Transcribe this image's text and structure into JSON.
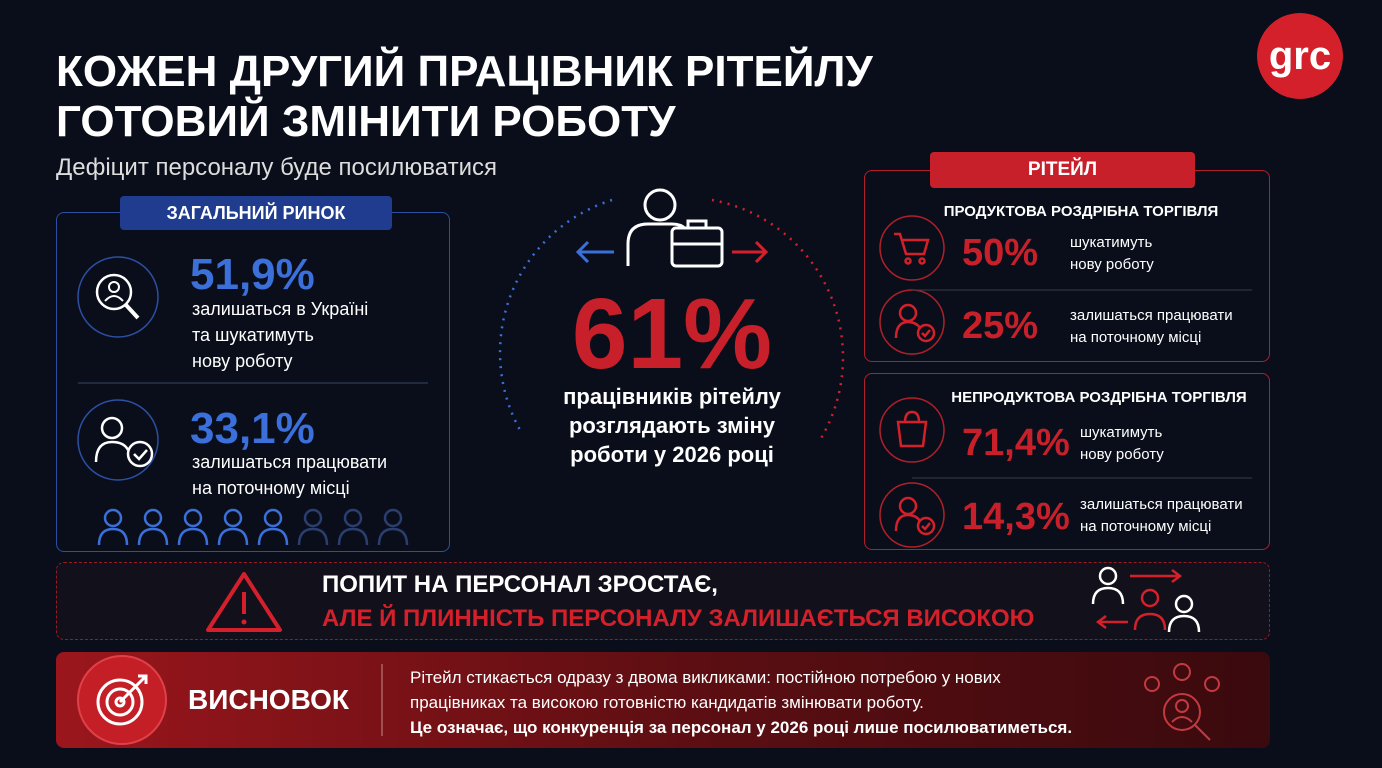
{
  "header": {
    "title": [
      "КОЖЕН ДРУГИЙ ПРАЦІВНИК  РІТЕЙЛУ",
      "ГОТОВИЙ ЗМІНИТИ РОБОТУ"
    ],
    "subtitle": "Дефіцит персоналу буде посилюватися",
    "logo": "grc"
  },
  "general_market": {
    "label": "ЗАГАЛЬНИЙ РИНОК",
    "items": [
      {
        "value": "51,9%",
        "lines": [
          "залишаться в Україні",
          "та шукатимуть",
          "нову роботу"
        ]
      },
      {
        "value": "33,1%",
        "lines": [
          "залишаться працювати",
          "на поточному місці"
        ]
      }
    ]
  },
  "center": {
    "value": "61%",
    "lines": [
      "працівників рітейлу",
      "розглядають зміну",
      "роботи у 2026 році"
    ]
  },
  "retail": {
    "label": "РІТЕЙЛ",
    "groups": [
      {
        "title": "ПРОДУКТОВА РОЗДРІБНА ТОРГІВЛЯ",
        "items": [
          {
            "value": "50%",
            "lines": [
              "шукатимуть",
              "нову роботу"
            ]
          },
          {
            "value": "25%",
            "lines": [
              "залишаться працювати",
              "на поточному місці"
            ]
          }
        ]
      },
      {
        "title": "НЕПРОДУКТОВА РОЗДРІБНА ТОРГІВЛЯ",
        "items": [
          {
            "value": "71,4%",
            "lines": [
              "шукатимуть",
              "нову роботу"
            ]
          },
          {
            "value": "14,3%",
            "lines": [
              "залишаться працювати",
              "на поточному місці"
            ]
          }
        ]
      }
    ]
  },
  "warning": {
    "lines": [
      "ПОПИТ НА ПЕРСОНАЛ ЗРОСТАЄ,",
      "АЛЕ Й ПЛИННІСТЬ ПЕРСОНАЛУ ЗАЛИШАЄТЬСЯ ВИСОКОЮ"
    ]
  },
  "conclusion": {
    "label": "ВИСНОВОК",
    "lines": [
      "Рітейл стикається одразу з двома викликами: постійною потребою у нових",
      "працівниках та високою готовністю кандидатів змінювати роботу.",
      "Це означає, що конкуренція  за персонал у 2026 році лише посилюватиметься."
    ]
  }
}
